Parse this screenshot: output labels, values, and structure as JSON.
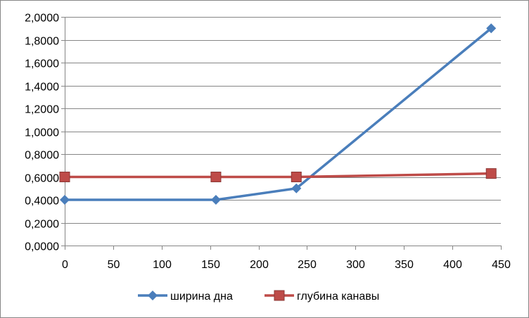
{
  "chart_data": {
    "type": "line",
    "title": "",
    "xlabel": "",
    "ylabel": "",
    "xlim": [
      0,
      450
    ],
    "ylim": [
      0,
      2
    ],
    "x_ticks": [
      0,
      50,
      100,
      150,
      200,
      250,
      300,
      350,
      400,
      450
    ],
    "x_tick_labels": [
      "0",
      "50",
      "100",
      "150",
      "200",
      "250",
      "300",
      "350",
      "400",
      "450"
    ],
    "y_ticks": [
      0,
      0.2,
      0.4,
      0.6,
      0.8,
      1.0,
      1.2,
      1.4,
      1.6,
      1.8,
      2.0
    ],
    "y_tick_labels": [
      "0,0000",
      "0,2000",
      "0,4000",
      "0,6000",
      "0,8000",
      "1,0000",
      "1,2000",
      "1,4000",
      "1,6000",
      "1,8000",
      "2,0000"
    ],
    "grid": "horizontal",
    "legend_position": "bottom",
    "series": [
      {
        "name": "ширина дна",
        "color": "#4A7EBB",
        "marker": "diamond",
        "points": [
          [
            0,
            0.4
          ],
          [
            156,
            0.4
          ],
          [
            239,
            0.5
          ],
          [
            440,
            1.9
          ]
        ]
      },
      {
        "name": "глубина канавы",
        "color": "#BE4B48",
        "marker": "square",
        "points": [
          [
            0,
            0.6
          ],
          [
            156,
            0.6
          ],
          [
            239,
            0.6
          ],
          [
            440,
            0.63
          ]
        ]
      }
    ]
  }
}
